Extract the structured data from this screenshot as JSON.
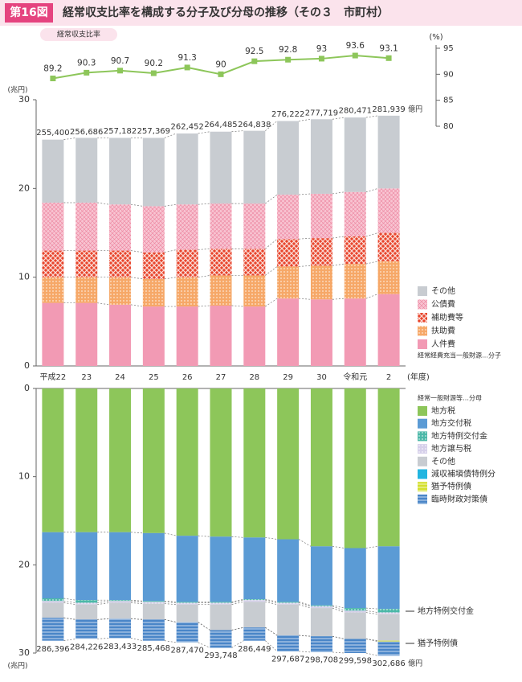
{
  "header": {
    "figure": "第16図",
    "title": "経常収支比率を構成する分子及び分母の推移（その３　市町村）"
  },
  "chart_data": [
    {
      "type": "line",
      "ylabel": "(%)",
      "series": [
        {
          "name": "経常収支比率",
          "color": "#8dc65a",
          "axis": "y2",
          "values": [
            89.2,
            90.3,
            90.7,
            90.2,
            91.3,
            90.0,
            92.5,
            92.8,
            93.0,
            93.6,
            93.1
          ]
        }
      ],
      "y2lim": [
        80,
        95
      ],
      "y2ticks": [
        80,
        85,
        90,
        95
      ]
    },
    {
      "type": "stacked_bar",
      "xlabel": "(年度)",
      "ylabel": "(兆円)",
      "categories": [
        "平成22",
        "23",
        "24",
        "25",
        "26",
        "27",
        "28",
        "29",
        "30",
        "令和元",
        "2"
      ],
      "ylim": [
        0,
        30
      ],
      "yticks": [
        0,
        10,
        20,
        30
      ],
      "legend_title": "経常経費充当一般財源…分子",
      "series": [
        {
          "name": "人件費",
          "color": "#f29ab4",
          "pattern": "none",
          "values": [
            7.1,
            7.1,
            6.9,
            6.7,
            6.7,
            6.8,
            6.7,
            7.6,
            7.5,
            7.6,
            8.1
          ]
        },
        {
          "name": "扶助費",
          "color": "#f6a868",
          "pattern": "dots",
          "values": [
            2.9,
            2.9,
            3.1,
            3.1,
            3.3,
            3.4,
            3.5,
            3.6,
            3.8,
            3.9,
            3.7
          ]
        },
        {
          "name": "補助費等",
          "color": "#e8452c",
          "pattern": "cross",
          "values": [
            3.0,
            3.0,
            3.0,
            3.0,
            3.1,
            3.0,
            3.0,
            3.1,
            3.1,
            3.1,
            3.2
          ]
        },
        {
          "name": "公債費",
          "color": "#f8c4d2",
          "pattern": "checks",
          "values": [
            5.4,
            5.4,
            5.2,
            5.2,
            5.1,
            5.1,
            5.1,
            5.0,
            5.0,
            5.0,
            5.0
          ]
        },
        {
          "name": "その他",
          "color": "#c8ccd1",
          "pattern": "none",
          "values": [
            7.1,
            7.3,
            7.5,
            7.7,
            8.0,
            8.1,
            8.2,
            8.3,
            8.4,
            8.4,
            8.2
          ]
        }
      ],
      "totals": {
        "values": [
          25.54,
          25.6686,
          25.7182,
          25.7369,
          26.2452,
          26.4485,
          26.4838,
          27.6222,
          27.7719,
          28.0471,
          28.1939
        ],
        "value_labels": [
          "255,400",
          "256,686",
          "257,182",
          "257,369",
          "262,452",
          "264,485",
          "264,838",
          "276,222",
          "277,719",
          "280,471",
          "281,939"
        ],
        "unit": "億円"
      }
    },
    {
      "type": "stacked_bar",
      "inverted": true,
      "ylabel": "(兆円)",
      "ylim": [
        0,
        30
      ],
      "yticks": [
        0,
        10,
        20,
        30
      ],
      "legend_title": "経常一般財源等…分母",
      "series": [
        {
          "name": "地方税",
          "color": "#8dc65a",
          "pattern": "none",
          "values": [
            16.3,
            16.3,
            16.3,
            16.4,
            16.7,
            16.8,
            16.9,
            17.1,
            17.9,
            18.1,
            17.9
          ]
        },
        {
          "name": "地方交付税",
          "color": "#5b9bd5",
          "pattern": "none",
          "values": [
            7.5,
            7.7,
            7.7,
            7.7,
            7.5,
            7.4,
            7.0,
            7.1,
            6.7,
            6.8,
            7.1
          ]
        },
        {
          "name": "地方特例交付金",
          "color": "#4cb8a8",
          "pattern": "dots",
          "values": [
            0.3,
            0.3,
            0.1,
            0.1,
            0.1,
            0.1,
            0.1,
            0.1,
            0.1,
            0.3,
            0.4
          ]
        },
        {
          "name": "地方譲与税",
          "color": "#d6d0ea",
          "pattern": "dots",
          "values": [
            0.2,
            0.2,
            0.2,
            0.2,
            0.2,
            0.2,
            0.2,
            0.2,
            0.2,
            0.2,
            0.2
          ]
        },
        {
          "name": "その他",
          "color": "#c8ccd1",
          "pattern": "none",
          "values": [
            1.7,
            1.7,
            1.8,
            1.8,
            2.0,
            2.9,
            2.9,
            3.5,
            3.2,
            3.0,
            3.0
          ]
        },
        {
          "name": "減収補塡債特例分",
          "color": "#22b5e0",
          "pattern": "none",
          "values": [
            0,
            0,
            0,
            0,
            0,
            0,
            0,
            0,
            0,
            0,
            0
          ]
        },
        {
          "name": "猶予特例債",
          "color": "#d4e02e",
          "pattern": "stripes",
          "values": [
            0,
            0,
            0,
            0,
            0,
            0,
            0,
            0,
            0,
            0,
            0.1
          ]
        },
        {
          "name": "臨時財政対策債",
          "color": "#4a86c8",
          "pattern": "stripes",
          "values": [
            2.6,
            2.2,
            2.2,
            2.4,
            2.3,
            2.0,
            1.5,
            1.8,
            1.8,
            1.6,
            1.6
          ]
        }
      ],
      "totals": {
        "values": [
          28.6396,
          28.4226,
          28.3433,
          28.5468,
          28.747,
          29.3748,
          28.6449,
          29.7687,
          29.8708,
          29.9598,
          30.2686
        ],
        "value_labels": [
          "286,396",
          "284,226",
          "283,433",
          "285,468",
          "287,470",
          "293,748",
          "286,449",
          "297,687",
          "298,708",
          "299,598",
          "302,686"
        ],
        "unit": "億円"
      },
      "annotations": [
        "地方特例交付金",
        "猶予特例債"
      ]
    }
  ]
}
